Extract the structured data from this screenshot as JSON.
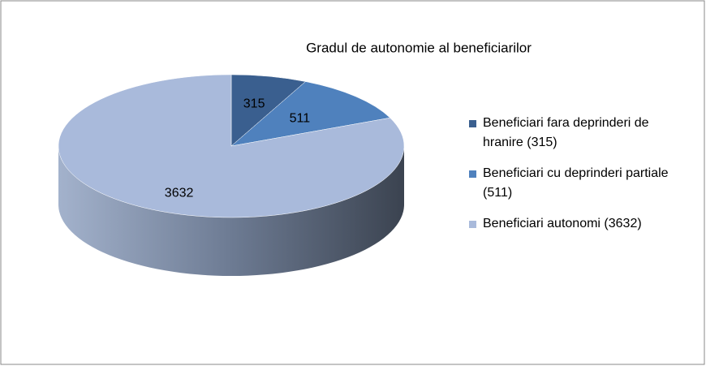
{
  "chart_data": {
    "type": "pie3d",
    "title": "Gradul de autonomie al beneficiarilor",
    "categories": [
      "Beneficiari fara deprinderi de hranire (315)",
      "Beneficiari cu deprinderi partiale (511)",
      "Beneficiari autonomi (3632)"
    ],
    "values": [
      315,
      511,
      3632
    ],
    "colors": [
      "#3a5f8f",
      "#4f81bd",
      "#a9badb"
    ],
    "legend": "right"
  }
}
